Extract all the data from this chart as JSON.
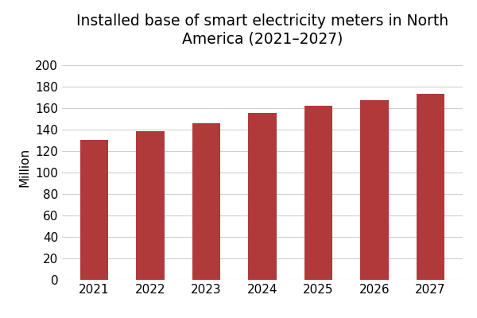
{
  "title": "Installed base of smart electricity meters in North\nAmerica (2021–2027)",
  "ylabel": "Million",
  "categories": [
    "2021",
    "2022",
    "2023",
    "2024",
    "2025",
    "2026",
    "2027"
  ],
  "values": [
    130,
    138,
    146,
    155,
    162,
    167,
    173
  ],
  "bar_color": "#b03a3a",
  "ylim": [
    0,
    210
  ],
  "yticks": [
    0,
    20,
    40,
    60,
    80,
    100,
    120,
    140,
    160,
    180,
    200
  ],
  "background_color": "#ffffff",
  "grid_color": "#d0d0d0",
  "title_fontsize": 13.5,
  "ylabel_fontsize": 11,
  "tick_fontsize": 11,
  "bar_width": 0.5
}
